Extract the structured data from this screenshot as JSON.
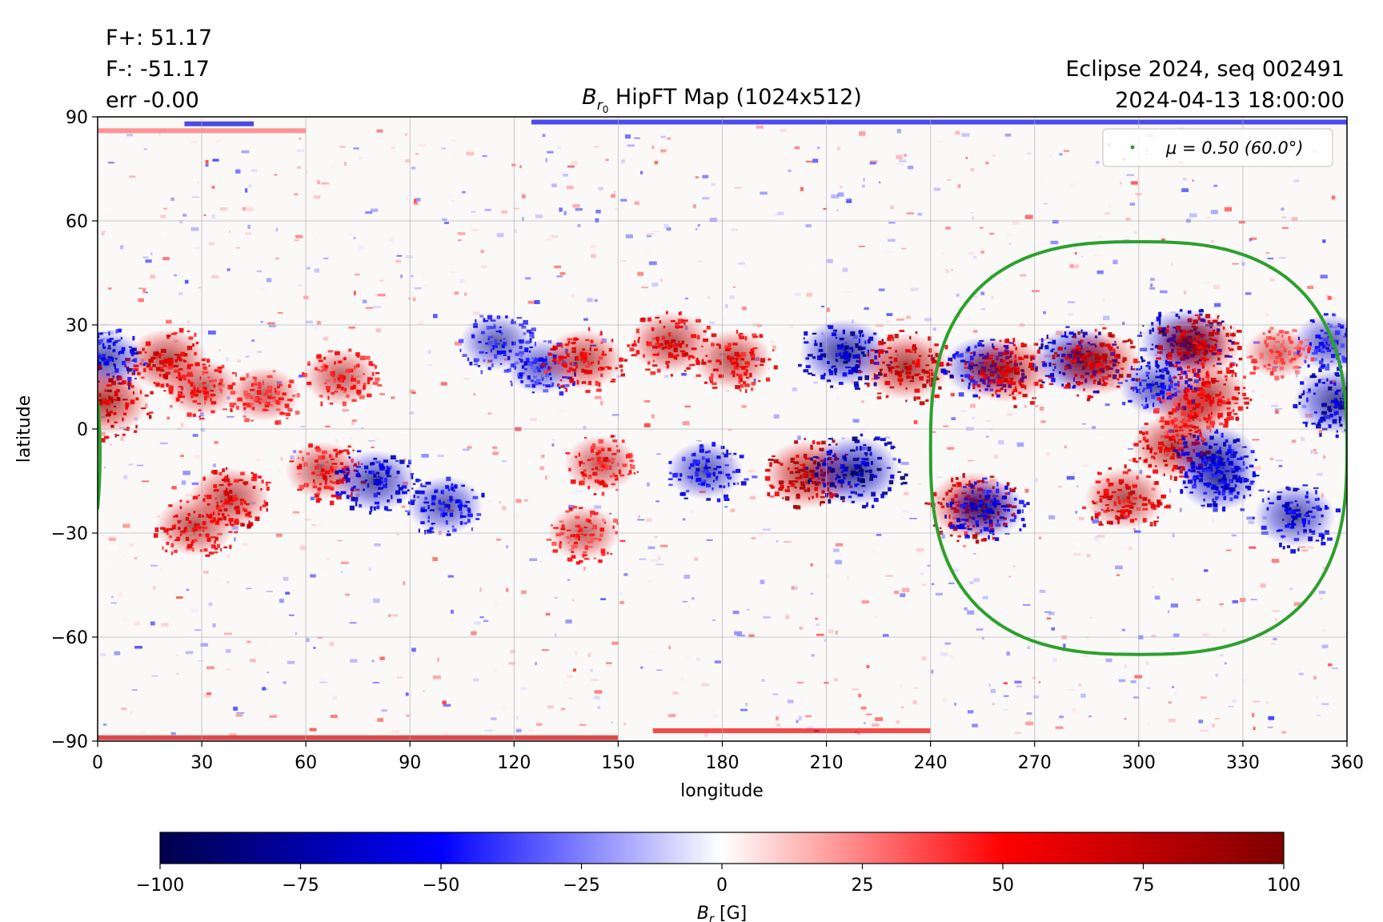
{
  "header": {
    "flux_pos": "F+: 51.17",
    "flux_neg": "F-: -51.17",
    "flux_err": "err -0.00",
    "run_name": "Eclipse 2024, seq 002491",
    "timestamp": "2024-04-13 18:00:00"
  },
  "chart_data": {
    "type": "heatmap",
    "title_symbol": "B",
    "title_subscript": "r",
    "title_sub_sub": "0",
    "title_rest": " HipFT Map (1024x512)",
    "xlabel": "longitude",
    "ylabel": "latitude",
    "xlim": [
      0,
      360
    ],
    "ylim": [
      -90,
      90
    ],
    "x_ticks": [
      0,
      30,
      60,
      90,
      120,
      150,
      180,
      210,
      240,
      270,
      300,
      330,
      360
    ],
    "y_ticks": [
      90,
      60,
      30,
      0,
      -30,
      -60,
      -90
    ],
    "y_tick_labels": [
      "90",
      "60",
      "30",
      "0",
      "−30",
      "−60",
      "−90"
    ],
    "grid": true,
    "legend": {
      "placement": "top-right",
      "label": "μ = 0.50 (60.0°)",
      "color": "#2ca02c"
    },
    "contour_mu": {
      "center_longitude": 300,
      "center_latitude": -5,
      "longitude_range": [
        240,
        360
      ],
      "latitude_range": [
        -65,
        54
      ],
      "wrap_segment_latitude": [
        -23,
        8
      ]
    },
    "colorbar": {
      "label_symbol": "B",
      "label_subscript": "r",
      "label_unit": " [G]",
      "range": [
        -100,
        100
      ],
      "ticks": [
        -100,
        -75,
        -50,
        -25,
        0,
        25,
        50,
        75,
        100
      ],
      "tick_labels": [
        "−100",
        "−75",
        "−50",
        "−25",
        "0",
        "25",
        "50",
        "75",
        "100"
      ],
      "colormap": "seismic",
      "colors": [
        "#00004c",
        "#0000ff",
        "#ffffff",
        "#ff0000",
        "#7f0000"
      ]
    },
    "active_regions": [
      {
        "lon": 20,
        "lat": 20,
        "value": 75
      },
      {
        "lon": 2,
        "lat": 20,
        "value": -70
      },
      {
        "lon": 30,
        "lat": 12,
        "value": 60
      },
      {
        "lon": 48,
        "lat": 10,
        "value": 55
      },
      {
        "lon": 70,
        "lat": 15,
        "value": 60
      },
      {
        "lon": 2,
        "lat": 8,
        "value": 90
      },
      {
        "lon": 38,
        "lat": -20,
        "value": 75
      },
      {
        "lon": 28,
        "lat": -28,
        "value": 70
      },
      {
        "lon": 65,
        "lat": -12,
        "value": 65
      },
      {
        "lon": 80,
        "lat": -15,
        "value": -75
      },
      {
        "lon": 100,
        "lat": -22,
        "value": -65
      },
      {
        "lon": 115,
        "lat": 25,
        "value": -60
      },
      {
        "lon": 128,
        "lat": 18,
        "value": -55
      },
      {
        "lon": 140,
        "lat": 20,
        "value": 70
      },
      {
        "lon": 145,
        "lat": -10,
        "value": 60
      },
      {
        "lon": 140,
        "lat": -30,
        "value": 55
      },
      {
        "lon": 165,
        "lat": 25,
        "value": 75
      },
      {
        "lon": 183,
        "lat": 20,
        "value": 70
      },
      {
        "lon": 175,
        "lat": -12,
        "value": -65
      },
      {
        "lon": 205,
        "lat": -13,
        "value": 95
      },
      {
        "lon": 218,
        "lat": -12,
        "value": -95
      },
      {
        "lon": 215,
        "lat": 22,
        "value": -90
      },
      {
        "lon": 233,
        "lat": 18,
        "value": 90
      },
      {
        "lon": 255,
        "lat": 18,
        "value": -70
      },
      {
        "lon": 262,
        "lat": 17,
        "value": 85
      },
      {
        "lon": 252,
        "lat": -22,
        "value": 90
      },
      {
        "lon": 256,
        "lat": -23,
        "value": -70
      },
      {
        "lon": 282,
        "lat": 20,
        "value": -85
      },
      {
        "lon": 288,
        "lat": 19,
        "value": 85
      },
      {
        "lon": 313,
        "lat": 25,
        "value": -90
      },
      {
        "lon": 317,
        "lat": 24,
        "value": 85
      },
      {
        "lon": 320,
        "lat": 10,
        "value": 70
      },
      {
        "lon": 305,
        "lat": 12,
        "value": -60
      },
      {
        "lon": 310,
        "lat": -5,
        "value": 80
      },
      {
        "lon": 322,
        "lat": -8,
        "value": -80
      },
      {
        "lon": 296,
        "lat": -20,
        "value": 75
      },
      {
        "lon": 323,
        "lat": -15,
        "value": -70
      },
      {
        "lon": 345,
        "lat": -25,
        "value": -75
      },
      {
        "lon": 357,
        "lat": 8,
        "value": -85
      },
      {
        "lon": 355,
        "lat": 25,
        "value": -60
      },
      {
        "lon": 340,
        "lat": 22,
        "value": 45
      },
      {
        "lon": 315,
        "lat": 5,
        "value": 60
      }
    ]
  }
}
